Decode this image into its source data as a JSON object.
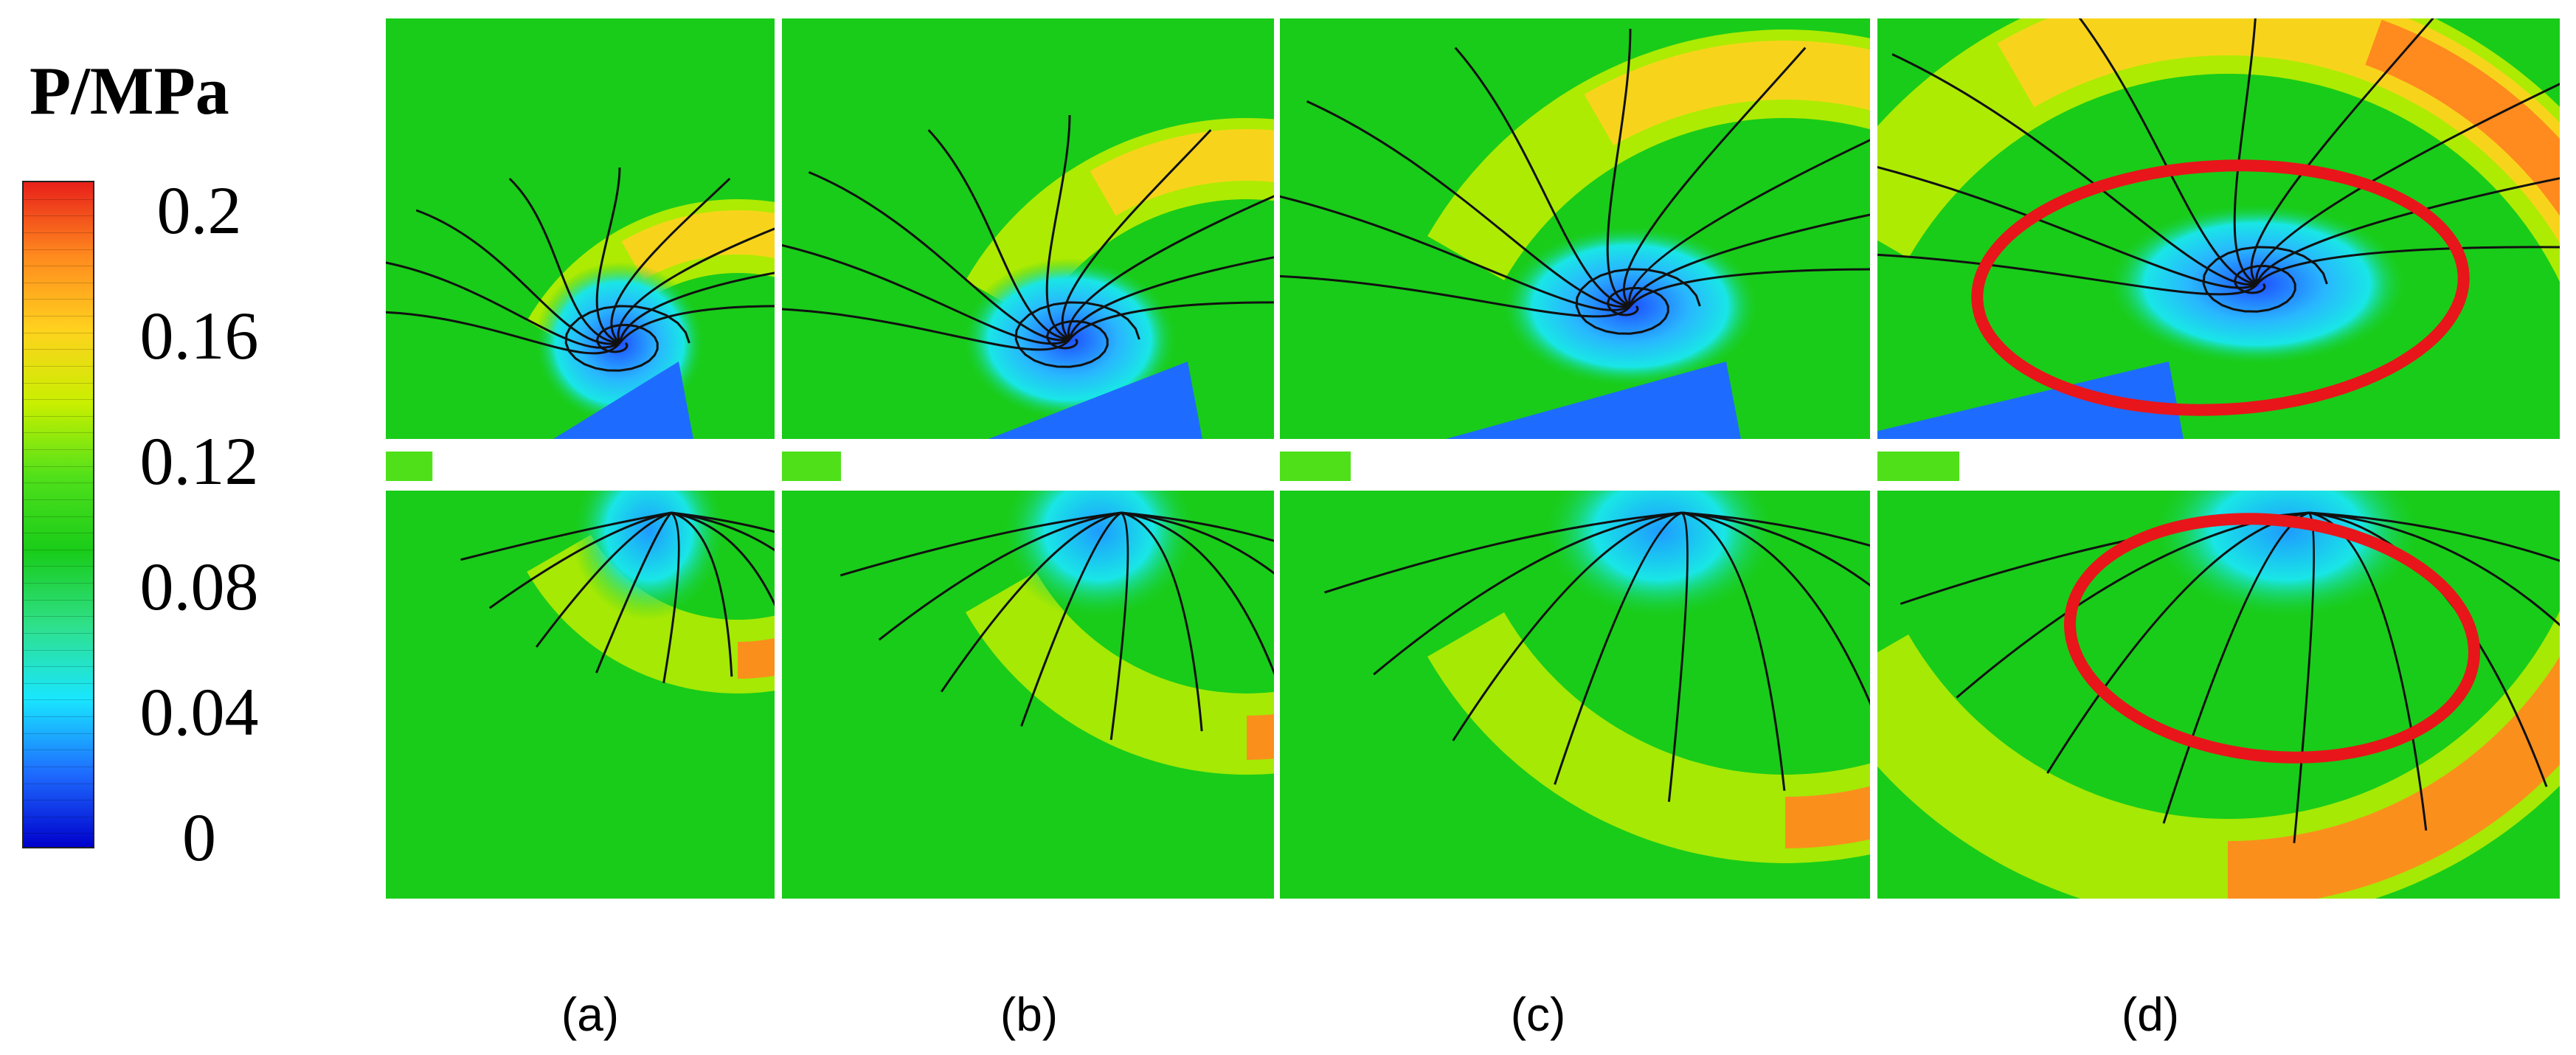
{
  "legend": {
    "title": "P/MPa",
    "ticks": [
      "0.2",
      "0.16",
      "0.12",
      "0.08",
      "0.04",
      "0"
    ],
    "min": 0,
    "max": 0.2,
    "scale_colors": [
      "#0000cc",
      "#1e6cff",
      "#19e6ff",
      "#2fe08a",
      "#19cc19",
      "#4fe01a",
      "#c8f000",
      "#ffd21e",
      "#ff8a1e",
      "#e8201a"
    ]
  },
  "panels": [
    {
      "id": "a",
      "label": "(a)"
    },
    {
      "id": "b",
      "label": "(b)"
    },
    {
      "id": "c",
      "label": "(c)"
    },
    {
      "id": "d",
      "label": "(d)"
    }
  ],
  "colors": {
    "background_field": "#19cc19",
    "streamline": "#111111",
    "highlight_ellipse": "#e8151b",
    "high_pressure": "#e8201a",
    "low_pressure": "#1e6cff"
  }
}
